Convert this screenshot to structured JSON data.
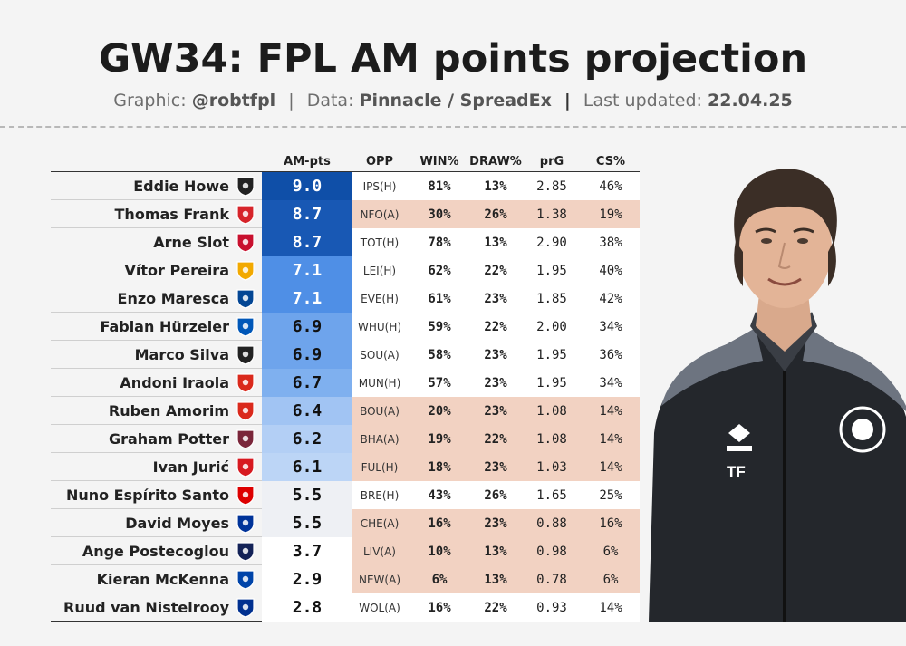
{
  "header": {
    "title": "GW34: FPL AM points projection",
    "graphic_label": "Graphic:",
    "graphic_handle": "@robtfpl",
    "data_label": "Data:",
    "data_source": "Pinnacle / SpreadEx",
    "updated_label": "Last updated:",
    "updated_date": "22.04.25",
    "sep": "|"
  },
  "chart_data": {
    "type": "table",
    "title": "GW34: FPL AM points projection",
    "columns": [
      "AM-pts",
      "OPP",
      "WIN%",
      "DRAW%",
      "prG",
      "CS%"
    ],
    "rows": [
      {
        "manager": "Eddie Howe",
        "badge_icon": "newcastle-crest-icon",
        "badge_color": "#222222",
        "am_pts": "9.0",
        "opp": "IPS(H)",
        "win": "81%",
        "draw": "13%",
        "prg": "2.85",
        "cs": "46%",
        "pts_color": "#0f4fa8",
        "pts_text": "#ffffff",
        "row_color": "#ffffff"
      },
      {
        "manager": "Thomas Frank",
        "badge_icon": "brentford-crest-icon",
        "badge_color": "#d6242a",
        "am_pts": "8.7",
        "opp": "NFO(A)",
        "win": "30%",
        "draw": "26%",
        "prg": "1.38",
        "cs": "19%",
        "pts_color": "#1858b4",
        "pts_text": "#ffffff",
        "row_color": "#f2d2c2"
      },
      {
        "manager": "Arne Slot",
        "badge_icon": "liverpool-crest-icon",
        "badge_color": "#c8102e",
        "am_pts": "8.7",
        "opp": "TOT(H)",
        "win": "78%",
        "draw": "13%",
        "prg": "2.90",
        "cs": "38%",
        "pts_color": "#1858b4",
        "pts_text": "#ffffff",
        "row_color": "#ffffff"
      },
      {
        "manager": "Vítor Pereira",
        "badge_icon": "wolves-crest-icon",
        "badge_color": "#f2a900",
        "am_pts": "7.1",
        "opp": "LEI(H)",
        "win": "62%",
        "draw": "22%",
        "prg": "1.95",
        "cs": "40%",
        "pts_color": "#4f8fe6",
        "pts_text": "#ffffff",
        "row_color": "#ffffff"
      },
      {
        "manager": "Enzo Maresca",
        "badge_icon": "chelsea-crest-icon",
        "badge_color": "#034694",
        "am_pts": "7.1",
        "opp": "EVE(H)",
        "win": "61%",
        "draw": "23%",
        "prg": "1.85",
        "cs": "42%",
        "pts_color": "#4f8fe6",
        "pts_text": "#ffffff",
        "row_color": "#ffffff"
      },
      {
        "manager": "Fabian Hürzeler",
        "badge_icon": "brighton-crest-icon",
        "badge_color": "#0057b8",
        "am_pts": "6.9",
        "opp": "WHU(H)",
        "win": "59%",
        "draw": "22%",
        "prg": "2.00",
        "cs": "34%",
        "pts_color": "#6ea4ec",
        "pts_text": "#111111",
        "row_color": "#ffffff"
      },
      {
        "manager": "Marco Silva",
        "badge_icon": "fulham-crest-icon",
        "badge_color": "#222222",
        "am_pts": "6.9",
        "opp": "SOU(A)",
        "win": "58%",
        "draw": "23%",
        "prg": "1.95",
        "cs": "36%",
        "pts_color": "#6ea4ec",
        "pts_text": "#111111",
        "row_color": "#ffffff"
      },
      {
        "manager": "Andoni Iraola",
        "badge_icon": "bournemouth-crest-icon",
        "badge_color": "#da291c",
        "am_pts": "6.7",
        "opp": "MUN(H)",
        "win": "57%",
        "draw": "23%",
        "prg": "1.95",
        "cs": "34%",
        "pts_color": "#7fb0ef",
        "pts_text": "#111111",
        "row_color": "#ffffff"
      },
      {
        "manager": "Ruben Amorim",
        "badge_icon": "man-utd-crest-icon",
        "badge_color": "#da291c",
        "am_pts": "6.4",
        "opp": "BOU(A)",
        "win": "20%",
        "draw": "23%",
        "prg": "1.08",
        "cs": "14%",
        "pts_color": "#a1c4f3",
        "pts_text": "#111111",
        "row_color": "#f2d2c2"
      },
      {
        "manager": "Graham Potter",
        "badge_icon": "west-ham-crest-icon",
        "badge_color": "#7a263a",
        "am_pts": "6.2",
        "opp": "BHA(A)",
        "win": "19%",
        "draw": "22%",
        "prg": "1.08",
        "cs": "14%",
        "pts_color": "#b3cff5",
        "pts_text": "#111111",
        "row_color": "#f2d2c2"
      },
      {
        "manager": "Ivan Jurić",
        "badge_icon": "southampton-crest-icon",
        "badge_color": "#d71920",
        "am_pts": "6.1",
        "opp": "FUL(H)",
        "win": "18%",
        "draw": "23%",
        "prg": "1.03",
        "cs": "14%",
        "pts_color": "#bcd5f6",
        "pts_text": "#111111",
        "row_color": "#f2d2c2"
      },
      {
        "manager": "Nuno Espírito Santo",
        "badge_icon": "forest-crest-icon",
        "badge_color": "#dd0000",
        "am_pts": "5.5",
        "opp": "BRE(H)",
        "win": "43%",
        "draw": "26%",
        "prg": "1.65",
        "cs": "25%",
        "pts_color": "#eef0f4",
        "pts_text": "#111111",
        "row_color": "#ffffff"
      },
      {
        "manager": "David Moyes",
        "badge_icon": "everton-crest-icon",
        "badge_color": "#003399",
        "am_pts": "5.5",
        "opp": "CHE(A)",
        "win": "16%",
        "draw": "23%",
        "prg": "0.88",
        "cs": "16%",
        "pts_color": "#eef0f4",
        "pts_text": "#111111",
        "row_color": "#f2d2c2"
      },
      {
        "manager": "Ange Postecoglou",
        "badge_icon": "spurs-crest-icon",
        "badge_color": "#132257",
        "am_pts": "3.7",
        "opp": "LIV(A)",
        "win": "10%",
        "draw": "13%",
        "prg": "0.98",
        "cs": "6%",
        "pts_color": "#ffffff",
        "pts_text": "#111111",
        "row_color": "#f2d2c2"
      },
      {
        "manager": "Kieran McKenna",
        "badge_icon": "ipswich-crest-icon",
        "badge_color": "#0044a9",
        "am_pts": "2.9",
        "opp": "NEW(A)",
        "win": "6%",
        "draw": "13%",
        "prg": "0.78",
        "cs": "6%",
        "pts_color": "#ffffff",
        "pts_text": "#111111",
        "row_color": "#f2d2c2"
      },
      {
        "manager": "Ruud van Nistelrooy",
        "badge_icon": "leicester-crest-icon",
        "badge_color": "#003090",
        "am_pts": "2.8",
        "opp": "WOL(A)",
        "win": "16%",
        "draw": "22%",
        "prg": "0.93",
        "cs": "14%",
        "pts_color": "#ffffff",
        "pts_text": "#111111",
        "row_color": "#ffffff"
      }
    ]
  },
  "portrait": {
    "icon": "manager-portrait-icon",
    "shirt_initials": "TF"
  }
}
